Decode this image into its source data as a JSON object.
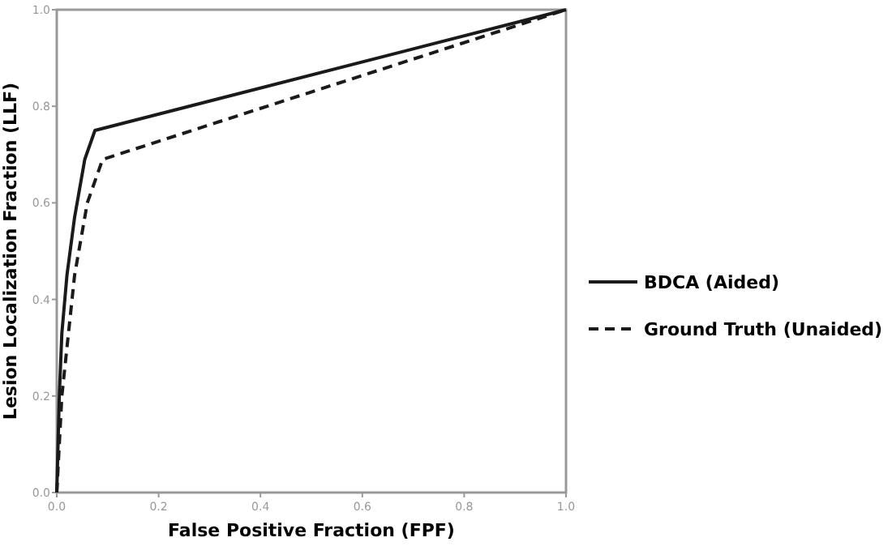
{
  "chart_data": {
    "type": "line",
    "xlabel": "False Positive Fraction (FPF)",
    "ylabel": "Lesion Localization Fraction (LLF)",
    "xlim": [
      0,
      1
    ],
    "ylim": [
      0,
      1
    ],
    "xticks": [
      {
        "value": 0,
        "label": "0.0"
      },
      {
        "value": 0.2,
        "label": "0.2"
      },
      {
        "value": 0.4,
        "label": "0.4"
      },
      {
        "value": 0.6,
        "label": "0.6"
      },
      {
        "value": 0.8,
        "label": "0.8"
      },
      {
        "value": 1,
        "label": "1.0"
      }
    ],
    "yticks": [
      {
        "value": 0,
        "label": "0.0"
      },
      {
        "value": 0.2,
        "label": "0.2"
      },
      {
        "value": 0.4,
        "label": "0.4"
      },
      {
        "value": 0.6,
        "label": "0.6"
      },
      {
        "value": 0.8,
        "label": "0.8"
      },
      {
        "value": 1,
        "label": "1.0"
      }
    ],
    "grid": false,
    "legend": "right",
    "marker": "none",
    "series": [
      {
        "name": "BDCA (Aided)",
        "color": "#1a1a1a",
        "line_style": "solid",
        "x": [
          0,
          0.005,
          0.01,
          0.02,
          0.035,
          0.055,
          0.075,
          1
        ],
        "values": [
          0,
          0.2,
          0.33,
          0.45,
          0.57,
          0.69,
          0.75,
          1
        ]
      },
      {
        "name": "Ground Truth (Unaided)",
        "color": "#1a1a1a",
        "line_style": "dashed",
        "x": [
          0,
          0.01,
          0.02,
          0.035,
          0.06,
          0.09,
          1
        ],
        "values": [
          0,
          0.2,
          0.3,
          0.45,
          0.6,
          0.69,
          1
        ]
      }
    ]
  }
}
